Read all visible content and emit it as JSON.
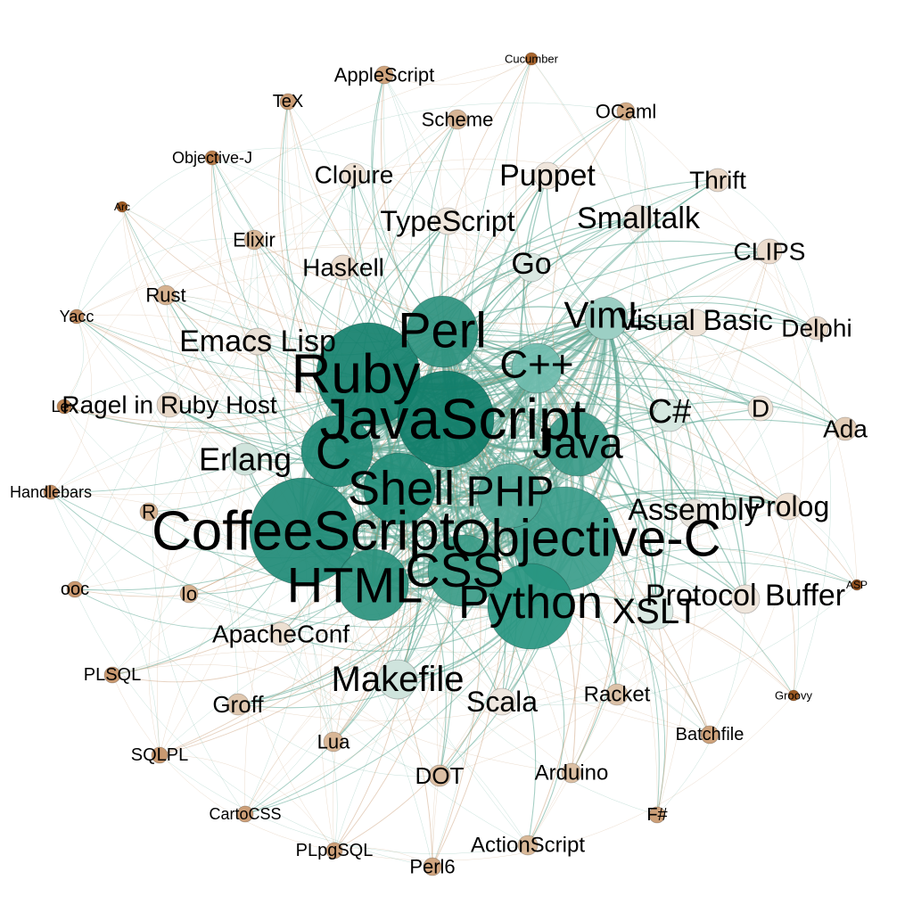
{
  "colors": {
    "background": "#ffffff",
    "edge_green": "#5aa592",
    "edge_brown": "#c79a70",
    "node_large": "#1c8a76",
    "node_medium": "#6fbcae",
    "node_light": "#dfe8e4",
    "node_beige": "#e6d4c2",
    "node_tan": "#cda27e",
    "node_dark": "#9b5e28",
    "label": "#000000"
  },
  "nodes": [
    {
      "id": "javascript",
      "label": "JavaScript",
      "weight": 1.0,
      "color": "#0e7c68"
    },
    {
      "id": "ruby",
      "label": "Ruby",
      "weight": 0.96,
      "color": "#13806c"
    },
    {
      "id": "coffeescript",
      "label": "CoffeeScript",
      "weight": 0.93,
      "color": "#1e8a76"
    },
    {
      "id": "objective-c",
      "label": "Objective-C",
      "weight": 0.9,
      "color": "#3a9c8a"
    },
    {
      "id": "python",
      "label": "Python",
      "weight": 0.88,
      "color": "#279580"
    },
    {
      "id": "shell",
      "label": "Shell",
      "weight": 0.85,
      "color": "#1f8c77"
    },
    {
      "id": "html",
      "label": "HTML",
      "weight": 0.84,
      "color": "#2a917d"
    },
    {
      "id": "css",
      "label": "CSS",
      "weight": 0.82,
      "color": "#3a9b87"
    },
    {
      "id": "c",
      "label": "C",
      "weight": 0.8,
      "color": "#1e8a76"
    },
    {
      "id": "java",
      "label": "Java",
      "weight": 0.76,
      "color": "#3a9a88"
    },
    {
      "id": "perl",
      "label": "Perl",
      "weight": 0.74,
      "color": "#2d917e"
    },
    {
      "id": "php",
      "label": "PHP",
      "weight": 0.72,
      "color": "#4ea796"
    },
    {
      "id": "cpp",
      "label": "C++",
      "weight": 0.64,
      "color": "#6fbcae"
    },
    {
      "id": "viml",
      "label": "VimL",
      "weight": 0.58,
      "color": "#9ccfc4"
    },
    {
      "id": "makefile",
      "label": "Makefile",
      "weight": 0.57,
      "color": "#cfe4dd"
    },
    {
      "id": "xslt",
      "label": "XSLT",
      "weight": 0.55,
      "color": "#dbeae4"
    },
    {
      "id": "csharp",
      "label": "C#",
      "weight": 0.46,
      "color": "#d6e8e1"
    },
    {
      "id": "erlang",
      "label": "Erlang",
      "weight": 0.47,
      "color": "#d0e4dc"
    },
    {
      "id": "assembly",
      "label": "Assembly",
      "weight": 0.44,
      "color": "#e8e4dc"
    },
    {
      "id": "protocol-buffer",
      "label": "Protocol Buffer",
      "weight": 0.44,
      "color": "#efe6dc"
    },
    {
      "id": "go",
      "label": "Go",
      "weight": 0.44,
      "color": "#d9e8e2"
    },
    {
      "id": "prolog",
      "label": "Prolog",
      "weight": 0.42,
      "color": "#efe1d3"
    },
    {
      "id": "puppet",
      "label": "Puppet",
      "weight": 0.42,
      "color": "#f0e6dc"
    },
    {
      "id": "emacs-lisp",
      "label": "Emacs Lisp",
      "weight": 0.41,
      "color": "#e9e0d5"
    },
    {
      "id": "smalltalk",
      "label": "Smalltalk",
      "weight": 0.4,
      "color": "#ece4da"
    },
    {
      "id": "scala",
      "label": "Scala",
      "weight": 0.39,
      "color": "#efe7df"
    },
    {
      "id": "visual-basic",
      "label": "Visual Basic",
      "weight": 0.38,
      "color": "#efe4d8"
    },
    {
      "id": "typescript",
      "label": "TypeScript",
      "weight": 0.38,
      "color": "#f0e8de"
    },
    {
      "id": "ragel",
      "label": "Ragel in Ruby Host",
      "weight": 0.35,
      "color": "#e8d8c8"
    },
    {
      "id": "clips",
      "label": "CLIPS",
      "weight": 0.34,
      "color": "#ecdccd"
    },
    {
      "id": "d",
      "label": "D",
      "weight": 0.34,
      "color": "#efe5da"
    },
    {
      "id": "haskell",
      "label": "Haskell",
      "weight": 0.34,
      "color": "#ecdccd"
    },
    {
      "id": "apacheconf",
      "label": "ApacheConf",
      "weight": 0.32,
      "color": "#ecdfd1"
    },
    {
      "id": "delphi",
      "label": "Delphi",
      "weight": 0.32,
      "color": "#e8d8c8"
    },
    {
      "id": "ada",
      "label": "Ada",
      "weight": 0.32,
      "color": "#e3cdb7"
    },
    {
      "id": "clojure",
      "label": "Clojure",
      "weight": 0.32,
      "color": "#efe3d6"
    },
    {
      "id": "thrift",
      "label": "Thrift",
      "weight": 0.32,
      "color": "#ead9c9"
    },
    {
      "id": "groff",
      "label": "Groff",
      "weight": 0.31,
      "color": "#dfc7af"
    },
    {
      "id": "racket",
      "label": "Racket",
      "weight": 0.29,
      "color": "#dcc2a8"
    },
    {
      "id": "dot",
      "label": "DOT",
      "weight": 0.3,
      "color": "#dcbfa3"
    },
    {
      "id": "arduino",
      "label": "Arduino",
      "weight": 0.29,
      "color": "#dbbfa3"
    },
    {
      "id": "actionscript",
      "label": "ActionScript",
      "weight": 0.29,
      "color": "#d8b898"
    },
    {
      "id": "scheme",
      "label": "Scheme",
      "weight": 0.27,
      "color": "#d7b494"
    },
    {
      "id": "lua",
      "label": "Lua",
      "weight": 0.26,
      "color": "#d8b696"
    },
    {
      "id": "elixir",
      "label": "Elixir",
      "weight": 0.25,
      "color": "#d8b696"
    },
    {
      "id": "rust",
      "label": "Rust",
      "weight": 0.25,
      "color": "#d6b290"
    },
    {
      "id": "io",
      "label": "Io",
      "weight": 0.24,
      "color": "#d6b290"
    },
    {
      "id": "r",
      "label": "R",
      "weight": 0.24,
      "color": "#d6b290"
    },
    {
      "id": "applescript",
      "label": "AppleScript",
      "weight": 0.23,
      "color": "#cfa47d"
    },
    {
      "id": "ocaml",
      "label": "OCaml",
      "weight": 0.23,
      "color": "#d2a983"
    },
    {
      "id": "perl6",
      "label": "Perl6",
      "weight": 0.22,
      "color": "#d1a680"
    },
    {
      "id": "batchfile",
      "label": "Batchfile",
      "weight": 0.21,
      "color": "#cea27b"
    },
    {
      "id": "plpgsql",
      "label": "PLpgSQL",
      "weight": 0.2,
      "color": "#cc9f78"
    },
    {
      "id": "cartocss",
      "label": "CartoCSS",
      "weight": 0.2,
      "color": "#cc9f78"
    },
    {
      "id": "fsharp",
      "label": "F#",
      "weight": 0.2,
      "color": "#cc9f78"
    },
    {
      "id": "tex",
      "label": "TeX",
      "weight": 0.2,
      "color": "#cb9c74"
    },
    {
      "id": "sqlpl",
      "label": "SQLPL",
      "weight": 0.19,
      "color": "#c99970"
    },
    {
      "id": "plsql",
      "label": "PLSQL",
      "weight": 0.19,
      "color": "#c99970"
    },
    {
      "id": "ooc",
      "label": "ooc",
      "weight": 0.18,
      "color": "#c8976e"
    },
    {
      "id": "handlebars",
      "label": "Handlebars",
      "weight": 0.17,
      "color": "#c28d62"
    },
    {
      "id": "yacc",
      "label": "Yacc",
      "weight": 0.17,
      "color": "#c28d62"
    },
    {
      "id": "lex",
      "label": "Lex",
      "weight": 0.16,
      "color": "#bb8250"
    },
    {
      "id": "objective-j",
      "label": "Objective-J",
      "weight": 0.16,
      "color": "#b87c4a"
    },
    {
      "id": "cucumber",
      "label": "Cucumber",
      "weight": 0.12,
      "color": "#a9662e"
    },
    {
      "id": "arc",
      "label": "Arc",
      "weight": 0.11,
      "color": "#9b5a24"
    },
    {
      "id": "groovy",
      "label": "Groovy",
      "weight": 0.11,
      "color": "#9b5a24"
    },
    {
      "id": "asp",
      "label": "ASP",
      "weight": 0.1,
      "color": "#8e4f1e"
    }
  ]
}
